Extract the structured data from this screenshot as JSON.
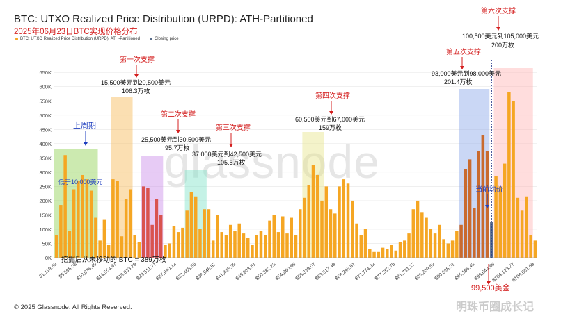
{
  "title": "BTC: UTXO Realized Price Distribution (URPD): ATH-Partitioned",
  "subtitle": "2025年06月23日BTC实现价格分布",
  "legend": [
    {
      "label": "BTC: UTXO Realized Price Distribution (URPD): ATH-Partitioned",
      "color": "#f5a623"
    },
    {
      "label": "Closing price",
      "color": "#5a6e8c"
    }
  ],
  "footer": "© 2025 Glassnode. All Rights Reserved.",
  "watermark": "glassnode",
  "source_watermark": "明珠币圈成长记",
  "chart_data": {
    "type": "bar",
    "y_ticks": [
      "0K",
      "50K",
      "100K",
      "150K",
      "200K",
      "250K",
      "300K",
      "350K",
      "400K",
      "450K",
      "500K",
      "550K",
      "600K",
      "650K"
    ],
    "ylim": [
      0,
      670000
    ],
    "x_ticks": [
      "$1,119.63",
      "$5,598.03",
      "$10,076.49",
      "$14,554.87",
      "$19,033.29",
      "$23,511.71",
      "$27,990.13",
      "$32,468.55",
      "$36,946.97",
      "$41,425.39",
      "$45,903.81",
      "$50,382.23",
      "$54,860.65",
      "$59,339.07",
      "$63,817.49",
      "$68,295.91",
      "$72,774.33",
      "$77,252.75",
      "$81,731.17",
      "$86,209.59",
      "$90,688.01",
      "$95,166.43",
      "$99,644.85",
      "$104,123.27",
      "$108,601.69"
    ],
    "values": [
      80000,
      185000,
      360000,
      95000,
      240000,
      270000,
      290000,
      275000,
      235000,
      140000,
      60000,
      135000,
      45000,
      275000,
      270000,
      75000,
      205000,
      240000,
      80000,
      55000,
      250000,
      245000,
      115000,
      205000,
      150000,
      45000,
      50000,
      110000,
      90000,
      105000,
      165000,
      230000,
      215000,
      100000,
      170000,
      170000,
      60000,
      150000,
      90000,
      80000,
      115000,
      95000,
      120000,
      85000,
      70000,
      45000,
      80000,
      95000,
      80000,
      130000,
      150000,
      90000,
      145000,
      85000,
      140000,
      80000,
      170000,
      210000,
      255000,
      325000,
      290000,
      200000,
      250000,
      170000,
      155000,
      250000,
      275000,
      260000,
      200000,
      120000,
      80000,
      100000,
      30000,
      20000,
      20000,
      35000,
      30000,
      45000,
      25000,
      55000,
      60000,
      85000,
      170000,
      200000,
      160000,
      140000,
      100000,
      85000,
      115000,
      65000,
      50000,
      60000,
      95000,
      115000,
      310000,
      345000,
      175000,
      375000,
      430000,
      375000,
      125000,
      285000,
      250000,
      330000,
      580000,
      550000,
      210000,
      165000,
      215000,
      80000,
      60000
    ],
    "colors": [],
    "closing_price_index": 100,
    "highlight_zones": [
      {
        "label": "低于10,000美元",
        "from": 0,
        "to": 9,
        "color": "#8fd14f"
      },
      {
        "label": "15,500美元到20,500美元 106.3万枚",
        "from": 13,
        "to": 17,
        "color": "#f7b955"
      },
      {
        "label": "25,500美元到30,500美元 95.7万枚",
        "from": 20,
        "to": 24,
        "color": "#c98be8"
      },
      {
        "label": "37,000美元到42,500美元 105.5万枚",
        "from": 30,
        "to": 34,
        "color": "#7fe3c8"
      },
      {
        "label": "60,500美元到67,000美元 159万枚",
        "from": 57,
        "to": 61,
        "color": "#e7e58a"
      },
      {
        "label": "93,000美元到98,000美元 201.4万枚",
        "from": 93,
        "to": 99,
        "color": "#8aa6e8"
      },
      {
        "label": "100,500美元到105,000美元 200万枚",
        "from": 101,
        "to": 109,
        "color": "#ffb3b3"
      }
    ],
    "annotations": {
      "last_week": "上周期",
      "below_10k": "低于10,000美元",
      "support_1": "第一次支撑",
      "support_1_range": "15,500美元到20,500美元",
      "support_1_amount": "106.3万枚",
      "support_2": "第二次支撑",
      "support_2_range": "25,500美元到30,500美元",
      "support_2_amount": "95.7万枚",
      "support_3": "第三次支撑",
      "support_3_range": "37,000美元到42,500美元",
      "support_3_amount": "105.5万枚",
      "support_4": "第四次支撑",
      "support_4_range": "60,500美元到67,000美元",
      "support_4_amount": "159万枚",
      "support_5": "第五次支撑",
      "support_5_range": "93,000美元到98,000美元",
      "support_5_amount": "201.4万枚",
      "support_6": "第六次支撑",
      "support_6_range": "100,500美元到105,000美元",
      "support_6_amount": "200万枚",
      "current_avg": "当前均价",
      "closing_price": "99,500美金",
      "unmoved_btc": "挖掘后从未移动的 BTC = 389万枚"
    }
  }
}
